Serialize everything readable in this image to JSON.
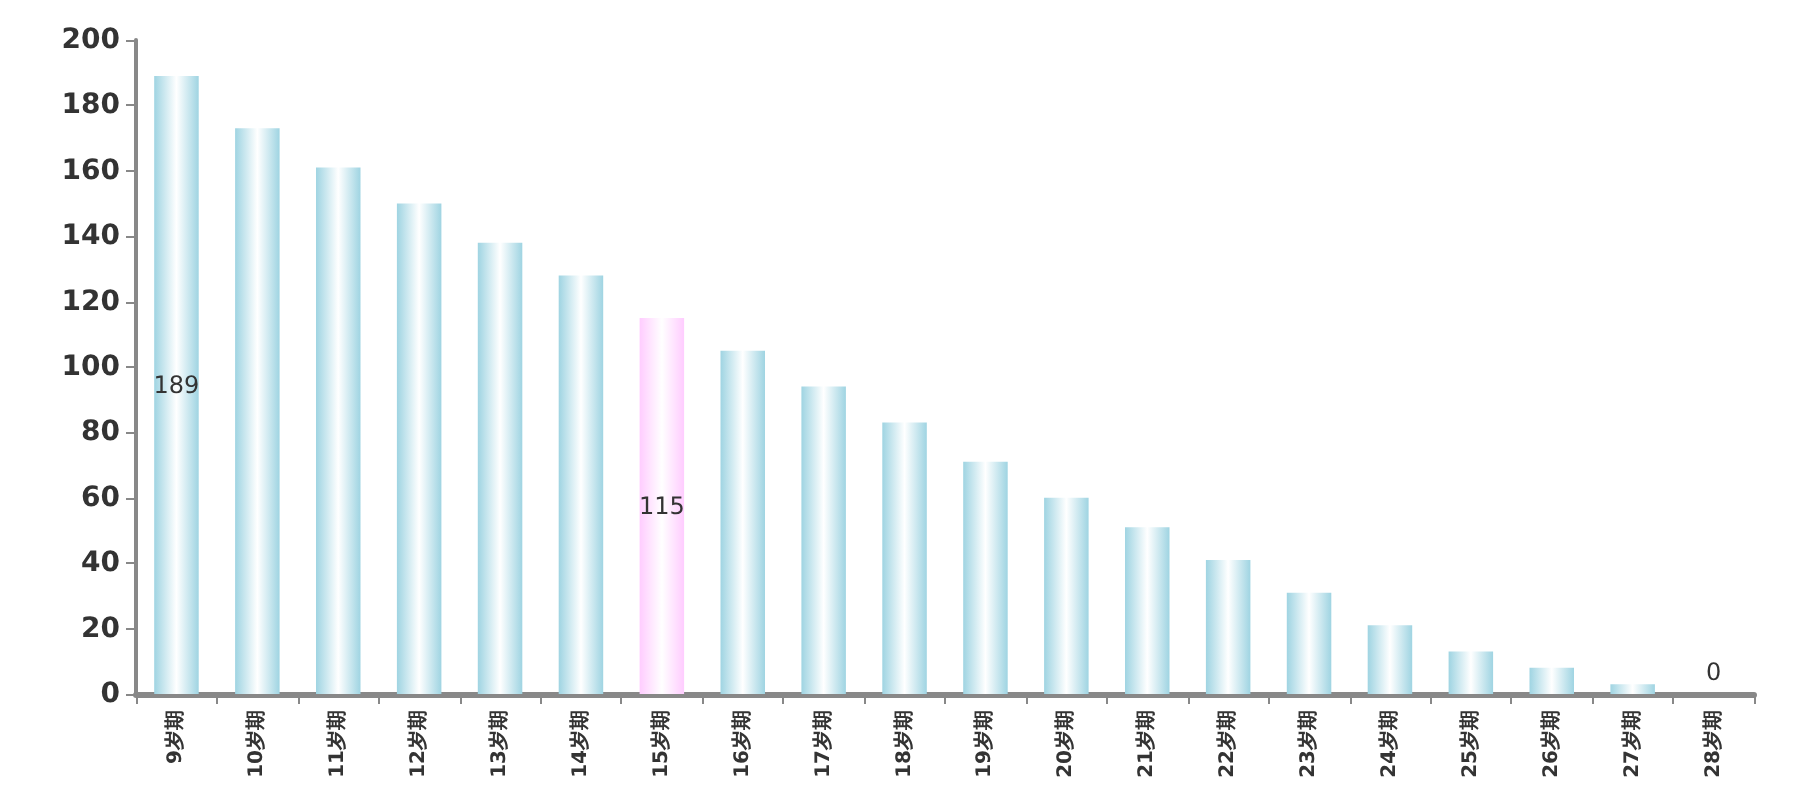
{
  "chart_data": {
    "type": "bar",
    "categories": [
      "9岁期",
      "10岁期",
      "11岁期",
      "12岁期",
      "13岁期",
      "14岁期",
      "15岁期",
      "16岁期",
      "17岁期",
      "18岁期",
      "19岁期",
      "20岁期",
      "21岁期",
      "22岁期",
      "23岁期",
      "24岁期",
      "25岁期",
      "26岁期",
      "27岁期",
      "28岁期"
    ],
    "values": [
      189,
      173,
      161,
      150,
      138,
      128,
      115,
      105,
      94,
      83,
      71,
      60,
      51,
      41,
      31,
      21,
      13,
      8,
      3,
      0
    ],
    "colors": [
      "#9fd4e2",
      "#9fd4e2",
      "#9fd4e2",
      "#9fd4e2",
      "#9fd4e2",
      "#9fd4e2",
      "#ffccff",
      "#9fd4e2",
      "#9fd4e2",
      "#9fd4e2",
      "#9fd4e2",
      "#9fd4e2",
      "#9fd4e2",
      "#9fd4e2",
      "#9fd4e2",
      "#9fd4e2",
      "#9fd4e2",
      "#9fd4e2",
      "#9fd4e2",
      "#9fd4e2"
    ],
    "value_labels": [
      "189",
      null,
      null,
      null,
      null,
      null,
      "115",
      null,
      null,
      null,
      null,
      null,
      null,
      null,
      null,
      null,
      null,
      null,
      null,
      "0"
    ],
    "ylim": [
      0,
      200
    ],
    "yticks": [
      0,
      20,
      40,
      60,
      80,
      100,
      120,
      140,
      160,
      180,
      200
    ],
    "grid": false
  }
}
